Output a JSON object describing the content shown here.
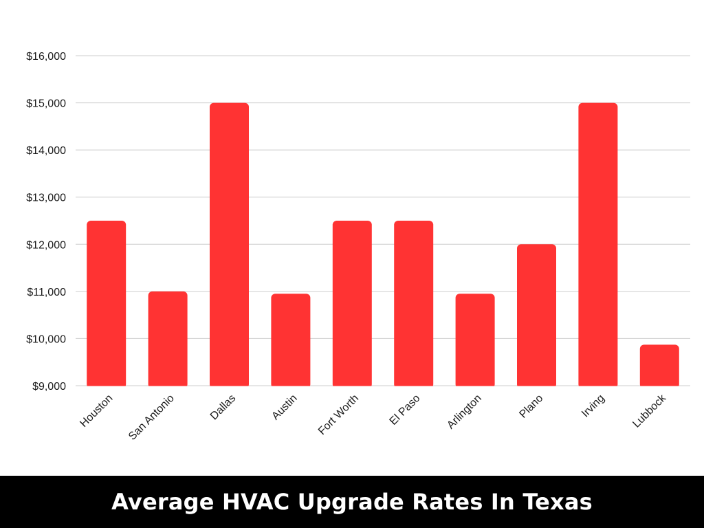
{
  "chart_data": {
    "type": "bar",
    "title": "Average HVAC Upgrade Rates In Texas",
    "xlabel": "",
    "ylabel": "",
    "categories": [
      "Houston",
      "San Antonio",
      "Dallas",
      "Austin",
      "Fort Worth",
      "El Paso",
      "Arlington",
      "Plano",
      "Irving",
      "Lubbock"
    ],
    "values": [
      12500,
      11000,
      15000,
      10950,
      12500,
      12500,
      10950,
      12000,
      15000,
      9870
    ],
    "ylim": [
      9000,
      16000
    ],
    "yticks": [
      9000,
      10000,
      11000,
      12000,
      13000,
      14000,
      15000,
      16000
    ],
    "ytick_labels": [
      "$9,000",
      "$10,000",
      "$11,000",
      "$12,000",
      "$13,000",
      "$14,000",
      "$15,000",
      "$16,000"
    ],
    "grid": true,
    "legend": "none",
    "bar_color": "#ff3333",
    "grid_color": "#cccccc",
    "title_bar_color": "#000000",
    "title_text_color": "#ffffff"
  }
}
